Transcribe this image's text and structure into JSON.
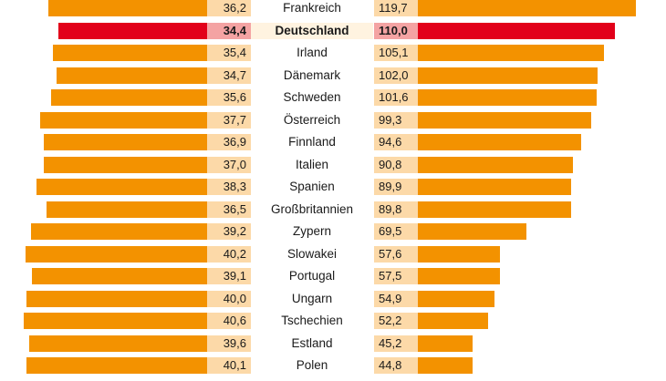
{
  "colors": {
    "bar": "#f39200",
    "bar_highlight": "#e2001a",
    "value_box": "#fcd9a8",
    "value_box_highlight": "#f4a3a3",
    "label_highlight_bg": "#fff3e0"
  },
  "chart_data": {
    "type": "bar",
    "highlight": "Deutschland",
    "categories": [
      "Frankreich",
      "Deutschland",
      "Irland",
      "Dänemark",
      "Schweden",
      "Österreich",
      "Finnland",
      "Italien",
      "Spanien",
      "Großbritannien",
      "Zypern",
      "Slowakei",
      "Portugal",
      "Ungarn",
      "Tschechien",
      "Estland",
      "Polen"
    ],
    "series": [
      {
        "side": "left",
        "values": [
          36.2,
          34.4,
          35.4,
          34.7,
          35.6,
          37.7,
          36.9,
          37.0,
          38.3,
          36.5,
          39.2,
          40.2,
          39.1,
          40.0,
          40.6,
          39.6,
          40.1
        ],
        "labels": [
          "36,2",
          "34,4",
          "35,4",
          "34,7",
          "35,6",
          "37,7",
          "36,9",
          "37,0",
          "38,3",
          "36,5",
          "39,2",
          "40,2",
          "39,1",
          "40,0",
          "40,6",
          "39,6",
          "40,1"
        ]
      },
      {
        "side": "right",
        "values": [
          119.7,
          110.0,
          105.1,
          102.0,
          101.6,
          99.3,
          94.6,
          90.8,
          89.9,
          89.8,
          69.5,
          57.6,
          57.5,
          54.9,
          52.2,
          45.2,
          44.8
        ],
        "labels": [
          "119,7",
          "110,0",
          "105,1",
          "102,0",
          "101,6",
          "99,3",
          "94,6",
          "90,8",
          "89,9",
          "89,8",
          "69,5",
          "57,6",
          "57,5",
          "54,9",
          "52,2",
          "45,2",
          "44,8"
        ]
      }
    ]
  }
}
